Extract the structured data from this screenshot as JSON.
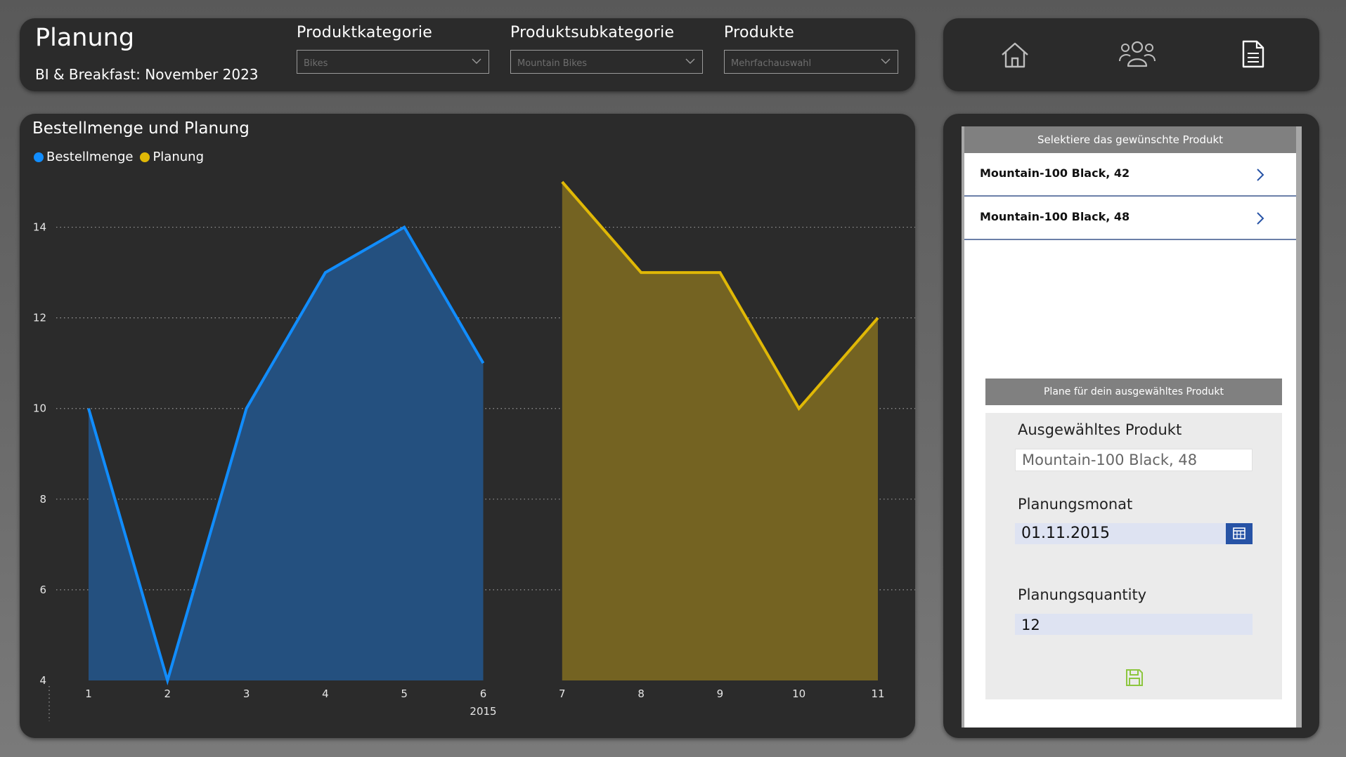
{
  "header": {
    "title": "Planung",
    "subtitle": "BI & Breakfast: November 2023",
    "slicers": [
      {
        "label": "Produktkategorie",
        "value": "Bikes"
      },
      {
        "label": "Produktsubkategorie",
        "value": "Mountain Bikes"
      },
      {
        "label": "Produkte",
        "value": "Mehrfachauswahl"
      }
    ]
  },
  "nav": {
    "icons": [
      "home-icon",
      "people-icon",
      "document-icon"
    ]
  },
  "chart_data": {
    "type": "area",
    "title": "Bestellmenge und Planung",
    "xlabel": "2015",
    "ylabel": "",
    "x": [
      1,
      2,
      3,
      4,
      5,
      6,
      7,
      8,
      9,
      10,
      11
    ],
    "x_ticks": [
      "1",
      "2",
      "3",
      "4",
      "5",
      "6",
      "7",
      "8",
      "9",
      "10",
      "11"
    ],
    "ylim": [
      4,
      15
    ],
    "y_ticks": [
      4,
      6,
      8,
      10,
      12,
      14
    ],
    "grid": true,
    "legend_position": "top-left",
    "series": [
      {
        "name": "Bestellmenge",
        "color": "#118dff",
        "fill": "#24507f",
        "x": [
          1,
          2,
          3,
          4,
          5,
          6
        ],
        "values": [
          10,
          4,
          10,
          13,
          14,
          11
        ]
      },
      {
        "name": "Planung",
        "color": "#e0b806",
        "fill": "#746322",
        "x": [
          7,
          8,
          9,
          10,
          11
        ],
        "values": [
          15,
          13,
          13,
          10,
          12
        ]
      }
    ]
  },
  "app": {
    "header": "Selektiere das gewünschte Produkt",
    "products": [
      "Mountain-100 Black, 42",
      "Mountain-100 Black, 48"
    ],
    "plan_header": "Plane für dein ausgewähltes Produkt",
    "form": {
      "product_label": "Ausgewähltes Produkt",
      "product_value": "Mountain-100 Black, 48",
      "month_label": "Planungsmonat",
      "month_value": "01.11.2015",
      "qty_label": "Planungsquantity",
      "qty_value": "12"
    },
    "colors": {
      "accent": "#2753a6",
      "save": "#8dc63f",
      "field": "#dee3f2"
    }
  }
}
